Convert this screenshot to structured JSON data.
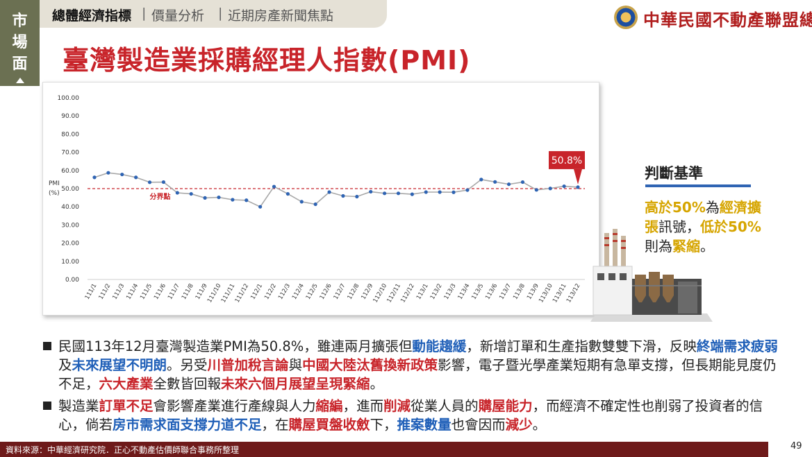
{
  "side_tab": [
    "市",
    "場",
    "面"
  ],
  "nav": {
    "active": "總體經濟指標",
    "sep": "|",
    "item2": "價量分析",
    "item3": "近期房產新聞焦點"
  },
  "brand": "中華民國不動產聯盟總會",
  "title": "臺灣製造業採購經理人指數(PMI)",
  "chart_data": {
    "type": "line",
    "ylabel_line1": "PMI",
    "ylabel_line2": "(%)",
    "ylim": [
      0,
      100
    ],
    "yticks": [
      "100.00",
      "90.00",
      "80.00",
      "70.00",
      "60.00",
      "50.00",
      "40.00",
      "30.00",
      "20.00",
      "10.00",
      "0.00"
    ],
    "categories": [
      "111/1",
      "111/2",
      "111/3",
      "111/4",
      "111/5",
      "111/6",
      "111/7",
      "111/8",
      "111/9",
      "111/10",
      "111/11",
      "111/12",
      "112/1",
      "112/2",
      "112/3",
      "112/4",
      "112/5",
      "112/6",
      "112/7",
      "112/8",
      "112/9",
      "112/10",
      "112/11",
      "112/12",
      "113/1",
      "113/2",
      "113/3",
      "113/4",
      "113/5",
      "113/6",
      "113/7",
      "113/8",
      "113/9",
      "113/10",
      "113/11",
      "113/12"
    ],
    "values": [
      56.2,
      58.7,
      57.8,
      56.2,
      53.5,
      53.6,
      47.7,
      47.1,
      44.9,
      45.2,
      43.9,
      43.6,
      40.0,
      51.1,
      47.1,
      42.8,
      41.4,
      48.1,
      46.0,
      45.6,
      48.3,
      47.4,
      47.4,
      46.9,
      48.1,
      48.1,
      48.0,
      49.2,
      55.0,
      53.7,
      52.4,
      53.6,
      49.3,
      50.1,
      51.3,
      50.8
    ],
    "threshold": 50,
    "threshold_label": "分界點",
    "callout": "50.8%",
    "grid": false,
    "colors": {
      "line": "#a8a8a8",
      "marker": "#2f64b3",
      "threshold": "#c8242a",
      "callout": "#c8242a"
    }
  },
  "criteria": {
    "title": "判斷基準",
    "l1_a": "高於50%",
    "l1_b": "為",
    "l1_c": "經濟擴",
    "l2_a": "張",
    "l2_b": "訊號，",
    "l2_c": "低於50%",
    "l3_a": "則為",
    "l3_b": "緊縮",
    "l3_c": "。"
  },
  "bullet1": {
    "t1": "民國113年12月臺灣製造業PMI為50.8%，雖連兩月擴張但",
    "h1": "動能趨緩",
    "t2": "，新增訂單和生產指數雙雙下滑，反映",
    "h2": "終端需求疲弱",
    "t3": "及",
    "h3": "未來展望不明朗",
    "t4": "。另受",
    "h4": "川普加稅言論",
    "t5": "與",
    "h5": "中國大陸汰舊換新政策",
    "t6": "影響，電子暨光學產業短期有急單支撐，但長期能見度仍不足，",
    "h6": "六大產業",
    "t7": "全數皆回報",
    "h7": "未來六個月展望呈現緊縮",
    "t8": "。"
  },
  "bullet2": {
    "t1": "製造業",
    "h1": "訂單不足",
    "t2": "會影響產業進行產線與人力",
    "h2": "縮編",
    "t3": "，進而",
    "h3": "削減",
    "t4": "從業人員的",
    "h4": "購屋能力",
    "t5": "，而經濟不確定性也削弱了投資者的信心，倘若",
    "h5": "房市需求面支撐力道不足",
    "t6": "，在",
    "h6": "購屋買盤收斂",
    "t7": "下，",
    "h7": "推案數量",
    "t8": "也會因而",
    "h8": "減少",
    "t9": "。"
  },
  "footer": "資料來源：中華經濟研究院．正心不動產估價師聯合事務所整理",
  "page_number": "49"
}
